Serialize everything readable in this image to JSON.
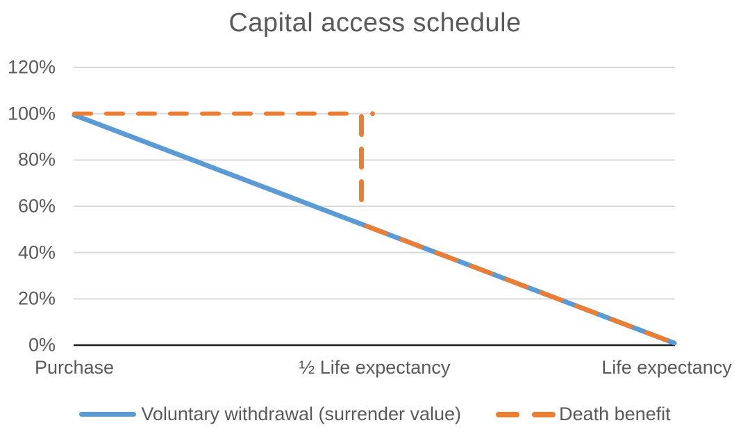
{
  "title": "Capital access schedule",
  "colors": {
    "background": "#FFFFFF",
    "text": "#595959",
    "grid": "#D9D9D9",
    "axis": "#1A1A1A",
    "series_blue": "#5B9BD5",
    "series_orange": "#ED7D31"
  },
  "chart_data": {
    "type": "line",
    "title": "Capital access schedule",
    "xlabel": "",
    "ylabel": "",
    "x_categories": [
      "Purchase",
      "½ Life expectancy",
      "Life expectancy"
    ],
    "x_positions": [
      0,
      0.5,
      1
    ],
    "y_tick_labels": [
      "120%",
      "100%",
      "80%",
      "60%",
      "40%",
      "20%",
      "0%"
    ],
    "y_tick_values": [
      120,
      100,
      80,
      60,
      40,
      20,
      0
    ],
    "ylim": [
      0,
      120
    ],
    "grid": true,
    "legend_position": "bottom",
    "series": [
      {
        "name": "Voluntary withdrawal (surrender value)",
        "color": "#5B9BD5",
        "line_style": "solid",
        "points": [
          [
            0,
            100
          ],
          [
            1,
            0
          ]
        ]
      },
      {
        "name": "Death benefit",
        "color": "#ED7D31",
        "line_style": "dashed",
        "points": [
          [
            0,
            100
          ],
          [
            0.5,
            100
          ],
          [
            0.5,
            50
          ],
          [
            1,
            0
          ]
        ]
      }
    ]
  }
}
